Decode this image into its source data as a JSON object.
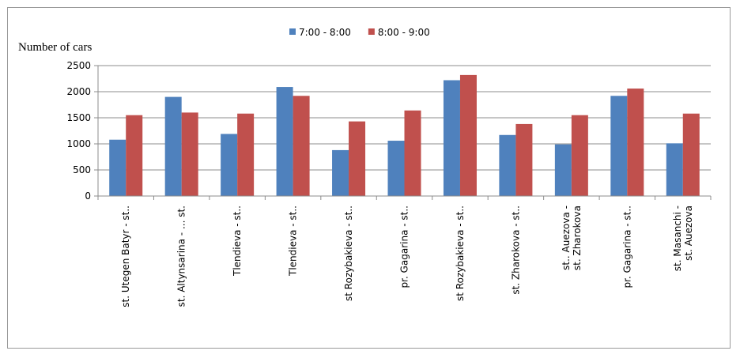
{
  "chart_data": {
    "type": "bar",
    "title": "",
    "xlabel": "",
    "ylabel": "Number of cars",
    "ylim": [
      0,
      2500
    ],
    "yticks": [
      0,
      500,
      1000,
      1500,
      2000,
      2500
    ],
    "grid": true,
    "legend_position": "top-center",
    "categories": [
      [
        "st. Utegen Batyr - st.."
      ],
      [
        "st. Altynsarina - ... st."
      ],
      [
        "Tlendieva - st.."
      ],
      [
        "Tlendieva - st.."
      ],
      [
        "st Rozybakieva - st.."
      ],
      [
        "pr. Gagarina - st.."
      ],
      [
        "st Rozybakieva - st.."
      ],
      [
        "st. Zharokova - st.."
      ],
      [
        "st.. Auezova -",
        "st. Zharokova"
      ],
      [
        "pr. Gagarina - st.."
      ],
      [
        "st. Masanchi -",
        "st. Auezova"
      ]
    ],
    "series": [
      {
        "name": "7:00 - 8:00",
        "color": "#4f81bd",
        "values": [
          1080,
          1900,
          1190,
          2090,
          880,
          1060,
          2220,
          1170,
          990,
          1920,
          1010
        ]
      },
      {
        "name": "8:00 - 9:00",
        "color": "#c0504d",
        "values": [
          1550,
          1600,
          1580,
          1920,
          1430,
          1640,
          2320,
          1380,
          1550,
          2060,
          1580
        ]
      }
    ]
  }
}
